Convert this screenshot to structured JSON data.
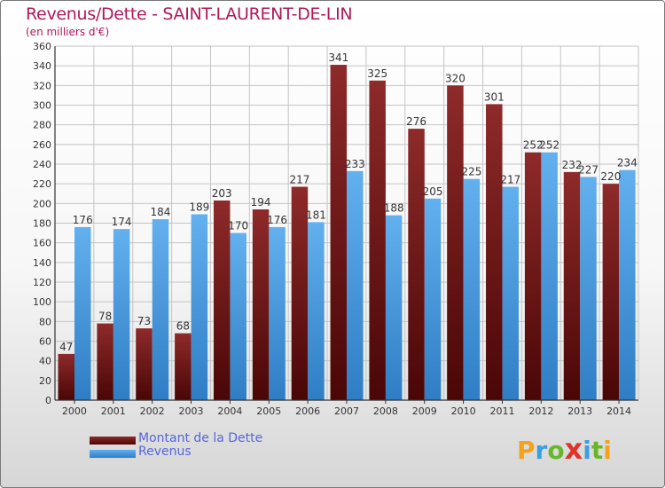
{
  "title": "Revenus/Dette - SAINT-LAURENT-DE-LIN",
  "subtitle": "(en milliers d'€)",
  "legend": {
    "debt_label": "Montant de la Dette",
    "revenue_label": "Revenus"
  },
  "logo_letters": [
    "P",
    "r",
    "o",
    "x",
    "i",
    "t",
    "i"
  ],
  "colors": {
    "title": "#b0185a",
    "debt": "#8a2020",
    "debt_dark": "#4a0606",
    "revenue": "#5aa6e6",
    "revenue_dark": "#2f7dc4",
    "legend_text": "#5566dd",
    "logo": [
      "#f3a21c",
      "#3aa0e0",
      "#6ab62b",
      "#e0342a",
      "#3aa0e0",
      "#6ab62b",
      "#f3a21c"
    ]
  },
  "chart_data": {
    "type": "bar",
    "title": "Revenus/Dette - SAINT-LAURENT-DE-LIN",
    "subtitle": "(en milliers d'€)",
    "categories": [
      "2000",
      "2001",
      "2002",
      "2003",
      "2004",
      "2005",
      "2006",
      "2007",
      "2008",
      "2009",
      "2010",
      "2011",
      "2012",
      "2013",
      "2014"
    ],
    "series": [
      {
        "name": "Montant de la Dette",
        "values": [
          47,
          78,
          73,
          68,
          203,
          194,
          217,
          341,
          325,
          276,
          320,
          301,
          252,
          232,
          220
        ]
      },
      {
        "name": "Revenus",
        "values": [
          176,
          174,
          184,
          189,
          170,
          176,
          181,
          233,
          188,
          205,
          225,
          217,
          252,
          227,
          234
        ]
      }
    ],
    "ylim": [
      0,
      360
    ],
    "yticks": [
      0,
      20,
      40,
      60,
      80,
      100,
      120,
      140,
      160,
      180,
      200,
      220,
      240,
      260,
      280,
      300,
      320,
      340,
      360
    ],
    "grid": true,
    "legend_position": "bottom-left"
  }
}
